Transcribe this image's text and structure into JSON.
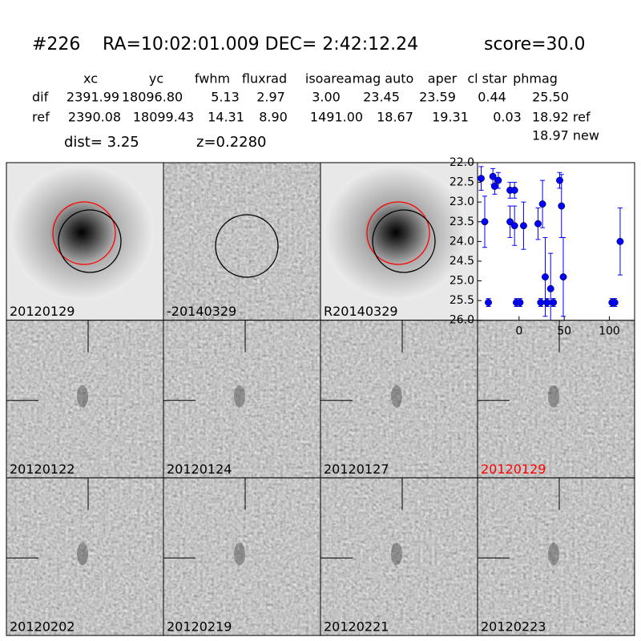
{
  "header": {
    "id": "#226",
    "coords": "RA=10:02:01.009 DEC= 2:42:12.24",
    "score": "score=30.0"
  },
  "table": {
    "columns": [
      "xc",
      "yc",
      "fwhm",
      "fluxrad",
      "isoarea",
      "mag auto",
      "aper",
      "cl star",
      "phmag"
    ],
    "rows": [
      [
        "dif",
        "2391.99",
        "18096.80",
        "5.13",
        "2.97",
        "3.00",
        "23.45",
        "23.59",
        "0.44",
        "25.50"
      ],
      [
        "ref",
        "2390.08",
        "18099.43",
        "14.31",
        "8.90",
        "1491.00",
        "18.67",
        "19.31",
        "0.03",
        "18.92 ref"
      ]
    ],
    "extra": "18.97 new"
  },
  "dist": "dist=  3.25",
  "z": "z=0.2280",
  "panels": [
    "20120129",
    "-20140329",
    "R20140329",
    "20120122",
    "20120124",
    "20120127",
    "20120129",
    "20120202",
    "20120219",
    "20120221",
    "20120223"
  ],
  "chart_data": {
    "type": "errorbar",
    "color": "#0000ff",
    "invert_y": true,
    "x": [
      -42,
      -38,
      -34,
      -29,
      -27,
      -23,
      -10,
      -10,
      -5,
      -5,
      -3,
      1,
      5,
      21,
      24,
      26,
      29,
      31,
      35,
      38,
      45,
      47,
      49,
      103,
      106,
      112
    ],
    "values": [
      22.4,
      23.5,
      25.55,
      22.35,
      22.6,
      22.45,
      22.7,
      23.5,
      22.7,
      23.6,
      25.55,
      25.55,
      23.6,
      23.55,
      25.55,
      23.05,
      24.9,
      25.55,
      25.2,
      25.55,
      22.45,
      23.1,
      24.9,
      25.55,
      25.55,
      24.0
    ],
    "errors": [
      0.3,
      0.65,
      0.1,
      0.2,
      0.2,
      0.2,
      0.2,
      0.4,
      0.2,
      0.5,
      0.1,
      0.1,
      0.6,
      0.4,
      0.1,
      0.6,
      1.0,
      0.1,
      0.9,
      0.1,
      0.2,
      0.8,
      1.0,
      0.1,
      0.1,
      0.85
    ],
    "xlim": [
      -46,
      128
    ],
    "ylim": [
      26.0,
      22.0
    ],
    "xticks": [
      0,
      50,
      100
    ],
    "yticks": [
      {
        "value": 22,
        "label": "22.0"
      },
      {
        "value": 22.5,
        "label": "22.5"
      },
      {
        "value": 23,
        "label": "23.0"
      },
      {
        "value": 23.5,
        "label": "23.5"
      },
      {
        "value": 24,
        "label": "24.0"
      },
      {
        "value": 24.5,
        "label": "24.5"
      },
      {
        "value": 25,
        "label": "25.0"
      },
      {
        "value": 25.5,
        "label": "25.5"
      },
      {
        "value": 26,
        "label": "26.0"
      }
    ]
  }
}
